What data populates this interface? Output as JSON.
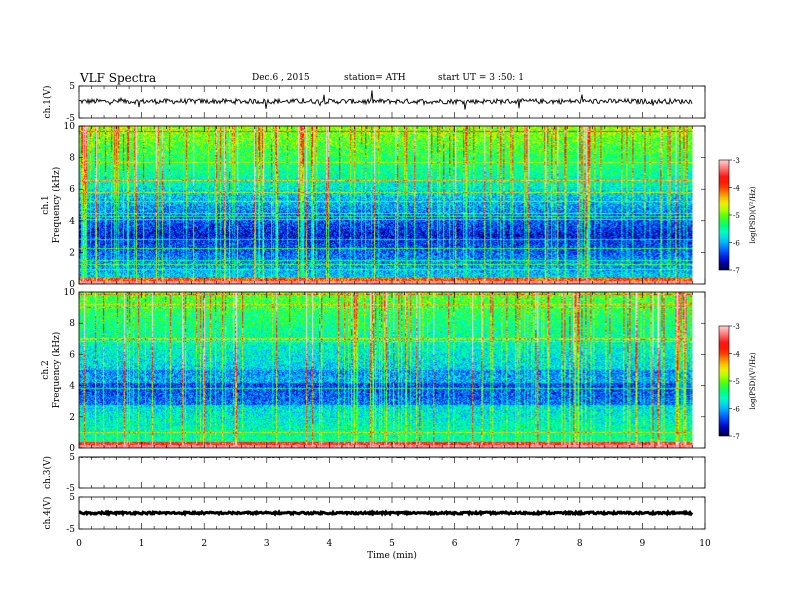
{
  "header": {
    "title": "VLF  Spectra",
    "date": "Dec.6  , 2015",
    "station": "station= ATH",
    "start": "start  UT  =   3  :50: 1"
  },
  "chart_data": [
    {
      "type": "line",
      "id": "ch1-waveform",
      "ylabel": "ch.1(V)",
      "ylim": [
        -5,
        5
      ],
      "y_ticks": [
        "5",
        "-5"
      ],
      "description_color": "#000000"
    },
    {
      "type": "heatmap",
      "id": "ch1-spectrogram",
      "ylabel": "ch.1\nFrequency (kHz)",
      "ylim": [
        0,
        10
      ],
      "y_ticks": [
        "0",
        "2",
        "4",
        "6",
        "8",
        "10"
      ],
      "colorbar": {
        "label": "log(PSD)(V²/Hz)",
        "range": [
          -7,
          -3
        ],
        "ticks": [
          "-3",
          "-4",
          "-5",
          "-6",
          "-7"
        ]
      }
    },
    {
      "type": "heatmap",
      "id": "ch2-spectrogram",
      "ylabel": "ch.2\nFrequency (kHz)",
      "ylim": [
        0,
        10
      ],
      "y_ticks": [
        "0",
        "2",
        "4",
        "6",
        "8",
        "10"
      ],
      "colorbar": {
        "label": "log(PSD)(V²/Hz)",
        "range": [
          -7,
          -3
        ],
        "ticks": [
          "-3",
          "-4",
          "-5",
          "-6",
          "-7"
        ]
      }
    },
    {
      "type": "line",
      "id": "ch3-waveform",
      "ylabel": "ch.3(V)",
      "ylim": [
        -5,
        5
      ],
      "y_ticks": [
        "5",
        "-5"
      ]
    },
    {
      "type": "line",
      "id": "ch4-waveform",
      "ylabel": "ch.4(V)",
      "ylim": [
        -5,
        5
      ],
      "y_ticks": [
        "5",
        "-5"
      ]
    }
  ],
  "x_axis": {
    "label": "Time  (min)",
    "range": [
      0,
      10
    ],
    "ticks": [
      "0",
      "1",
      "2",
      "3",
      "4",
      "5",
      "6",
      "7",
      "8",
      "9",
      "10"
    ],
    "data_end": 9.8
  },
  "colors": {
    "colormap": [
      "#00003c",
      "#0000c8",
      "#0050ff",
      "#00b4ff",
      "#00ffd2",
      "#00ff64",
      "#64ff00",
      "#e6ff00",
      "#ffb400",
      "#ff3c00",
      "#ff0000",
      "#ff6e6e",
      "#ffd2d2"
    ]
  }
}
